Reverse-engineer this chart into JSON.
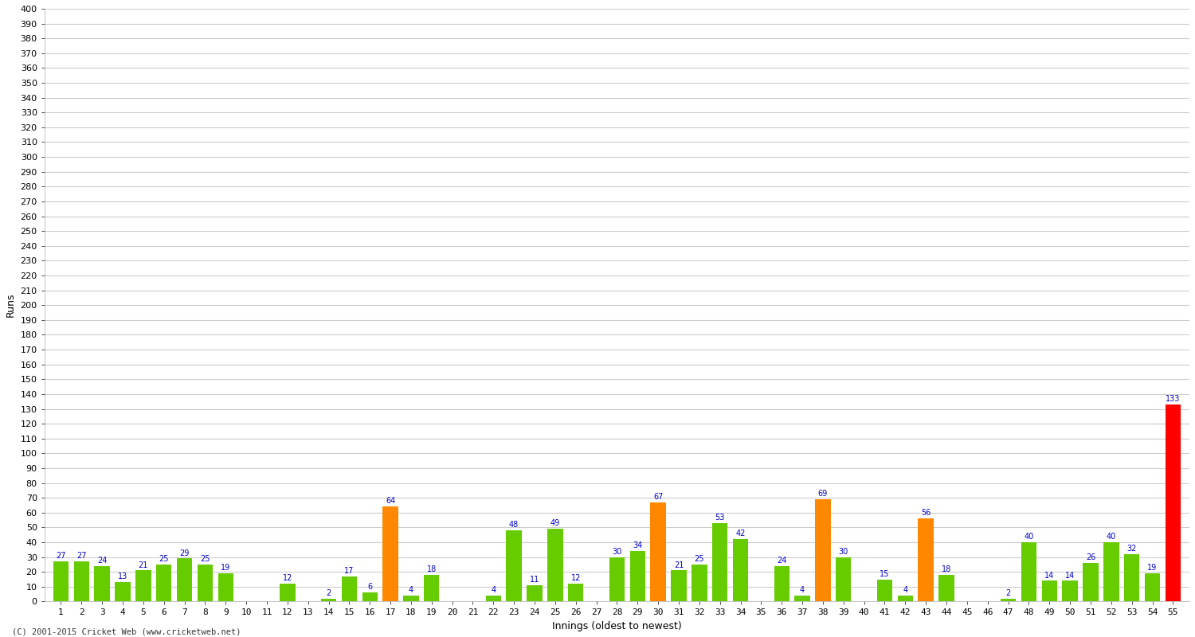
{
  "xlabel": "Innings (oldest to newest)",
  "ylabel": "Runs",
  "values": [
    27,
    27,
    24,
    13,
    21,
    25,
    29,
    25,
    19,
    0,
    0,
    12,
    0,
    2,
    17,
    6,
    64,
    4,
    18,
    0,
    0,
    4,
    48,
    11,
    49,
    12,
    0,
    30,
    34,
    67,
    21,
    25,
    53,
    42,
    0,
    24,
    4,
    69,
    30,
    0,
    15,
    4,
    56,
    18,
    0,
    0,
    2,
    40,
    14,
    14,
    26,
    40,
    32,
    19,
    133
  ],
  "innings": [
    1,
    2,
    3,
    4,
    5,
    6,
    7,
    8,
    9,
    10,
    11,
    12,
    13,
    14,
    15,
    16,
    17,
    18,
    19,
    20,
    21,
    22,
    23,
    24,
    25,
    26,
    27,
    28,
    29,
    30,
    31,
    32,
    33,
    34,
    35,
    36,
    37,
    38,
    39,
    40,
    41,
    42,
    43,
    44,
    45,
    46,
    47,
    48,
    49,
    50,
    51,
    52,
    53,
    54,
    55
  ],
  "colors": [
    "#66cc00",
    "#66cc00",
    "#66cc00",
    "#66cc00",
    "#66cc00",
    "#66cc00",
    "#66cc00",
    "#66cc00",
    "#66cc00",
    "#66cc00",
    "#66cc00",
    "#66cc00",
    "#66cc00",
    "#66cc00",
    "#66cc00",
    "#66cc00",
    "#ff8800",
    "#66cc00",
    "#66cc00",
    "#66cc00",
    "#66cc00",
    "#66cc00",
    "#66cc00",
    "#66cc00",
    "#66cc00",
    "#66cc00",
    "#66cc00",
    "#66cc00",
    "#66cc00",
    "#ff8800",
    "#66cc00",
    "#66cc00",
    "#66cc00",
    "#66cc00",
    "#66cc00",
    "#66cc00",
    "#66cc00",
    "#ff8800",
    "#66cc00",
    "#66cc00",
    "#66cc00",
    "#66cc00",
    "#ff8800",
    "#66cc00",
    "#66cc00",
    "#66cc00",
    "#66cc00",
    "#66cc00",
    "#66cc00",
    "#66cc00",
    "#66cc00",
    "#66cc00",
    "#66cc00",
    "#66cc00",
    "#ff0000"
  ],
  "ylim": [
    0,
    400
  ],
  "yticks": [
    0,
    10,
    20,
    30,
    40,
    50,
    60,
    70,
    80,
    90,
    100,
    110,
    120,
    130,
    140,
    150,
    160,
    170,
    180,
    190,
    200,
    210,
    220,
    230,
    240,
    250,
    260,
    270,
    280,
    290,
    300,
    310,
    320,
    330,
    340,
    350,
    360,
    370,
    380,
    390,
    400
  ],
  "label_color": "#0000cc",
  "label_fontsize": 7,
  "axis_fontsize": 8,
  "bg_color": "#ffffff",
  "grid_color": "#cccccc",
  "footer": "(C) 2001-2015 Cricket Web (www.cricketweb.net)"
}
